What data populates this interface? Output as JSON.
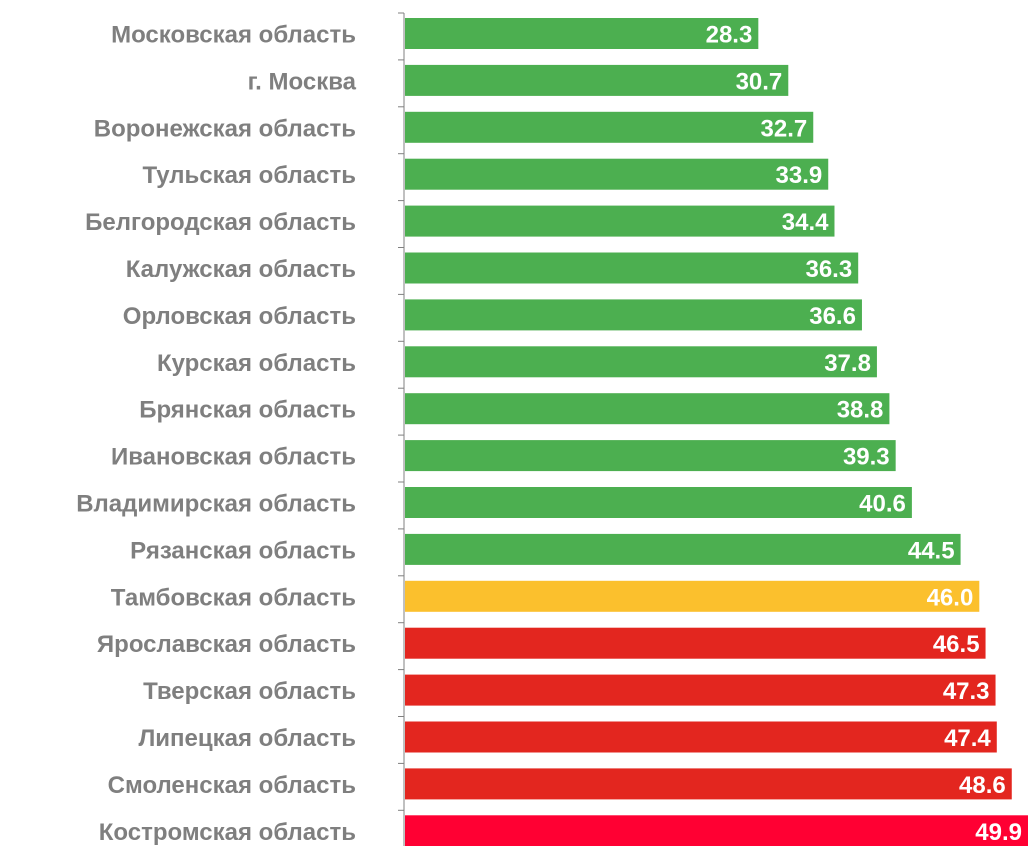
{
  "chart_data": {
    "type": "bar",
    "orientation": "horizontal",
    "title": "",
    "xlabel": "",
    "ylabel": "",
    "categories": [
      "Московская область",
      "г. Москва",
      "Воронежская область",
      "Тульская область",
      "Белгородская область",
      "Калужская область",
      "Орловская область",
      "Курская область",
      "Брянская область",
      "Ивановская область",
      "Владимирская область",
      "Рязанская область",
      "Тамбовская область",
      "Ярославская область",
      "Тверская область",
      "Липецкая область",
      "Смоленская область",
      "Костромская область"
    ],
    "values": [
      28.3,
      30.7,
      32.7,
      33.9,
      34.4,
      36.3,
      36.6,
      37.8,
      38.8,
      39.3,
      40.6,
      44.5,
      46.0,
      46.5,
      47.3,
      47.4,
      48.6,
      49.9
    ],
    "value_labels": [
      "28.3",
      "30.7",
      "32.7",
      "33.9",
      "34.4",
      "36.3",
      "36.6",
      "37.8",
      "38.8",
      "39.3",
      "40.6",
      "44.5",
      "46.0",
      "46.5",
      "47.3",
      "47.4",
      "48.6",
      "49.9"
    ],
    "bar_colors": [
      "#4caf50",
      "#4caf50",
      "#4caf50",
      "#4caf50",
      "#4caf50",
      "#4caf50",
      "#4caf50",
      "#4caf50",
      "#4caf50",
      "#4caf50",
      "#4caf50",
      "#4caf50",
      "#fbc02d",
      "#e3261f",
      "#e3261f",
      "#e3261f",
      "#e3261f",
      "#ff0033"
    ],
    "xlim": [
      0,
      49.9
    ],
    "grid": false,
    "legend": "none"
  }
}
